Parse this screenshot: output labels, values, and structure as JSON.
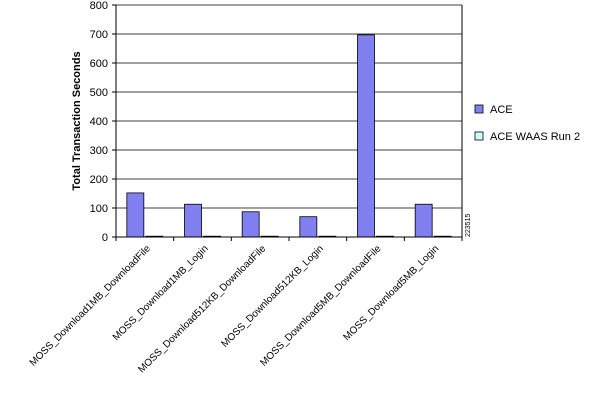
{
  "chart_data": {
    "type": "bar",
    "title": "",
    "xlabel": "",
    "ylabel": "Total Transaction Seconds",
    "ylim": [
      0,
      800
    ],
    "yticks": [
      0,
      100,
      200,
      300,
      400,
      500,
      600,
      700,
      800
    ],
    "grid": "horizontal",
    "legend_position": "right",
    "categories": [
      "MOSS_Download1MB_DownloadFile",
      "MOSS_Download1MB_Login",
      "MOSS_Download512KB_DownloadFile",
      "MOSS_Download512KB_Login",
      "MOSS_Download5MB_DownloadFile",
      "MOSS_Download5MB_Login"
    ],
    "series": [
      {
        "name": "ACE",
        "color": "#8080f0",
        "values": [
          152,
          113,
          87,
          70,
          697,
          113
        ]
      },
      {
        "name": "ACE WAAS Run 2",
        "color": "#ccffff",
        "values": [
          0,
          1.5,
          0,
          1.5,
          1.5,
          1.5
        ]
      }
    ],
    "figure_id": "223515"
  }
}
